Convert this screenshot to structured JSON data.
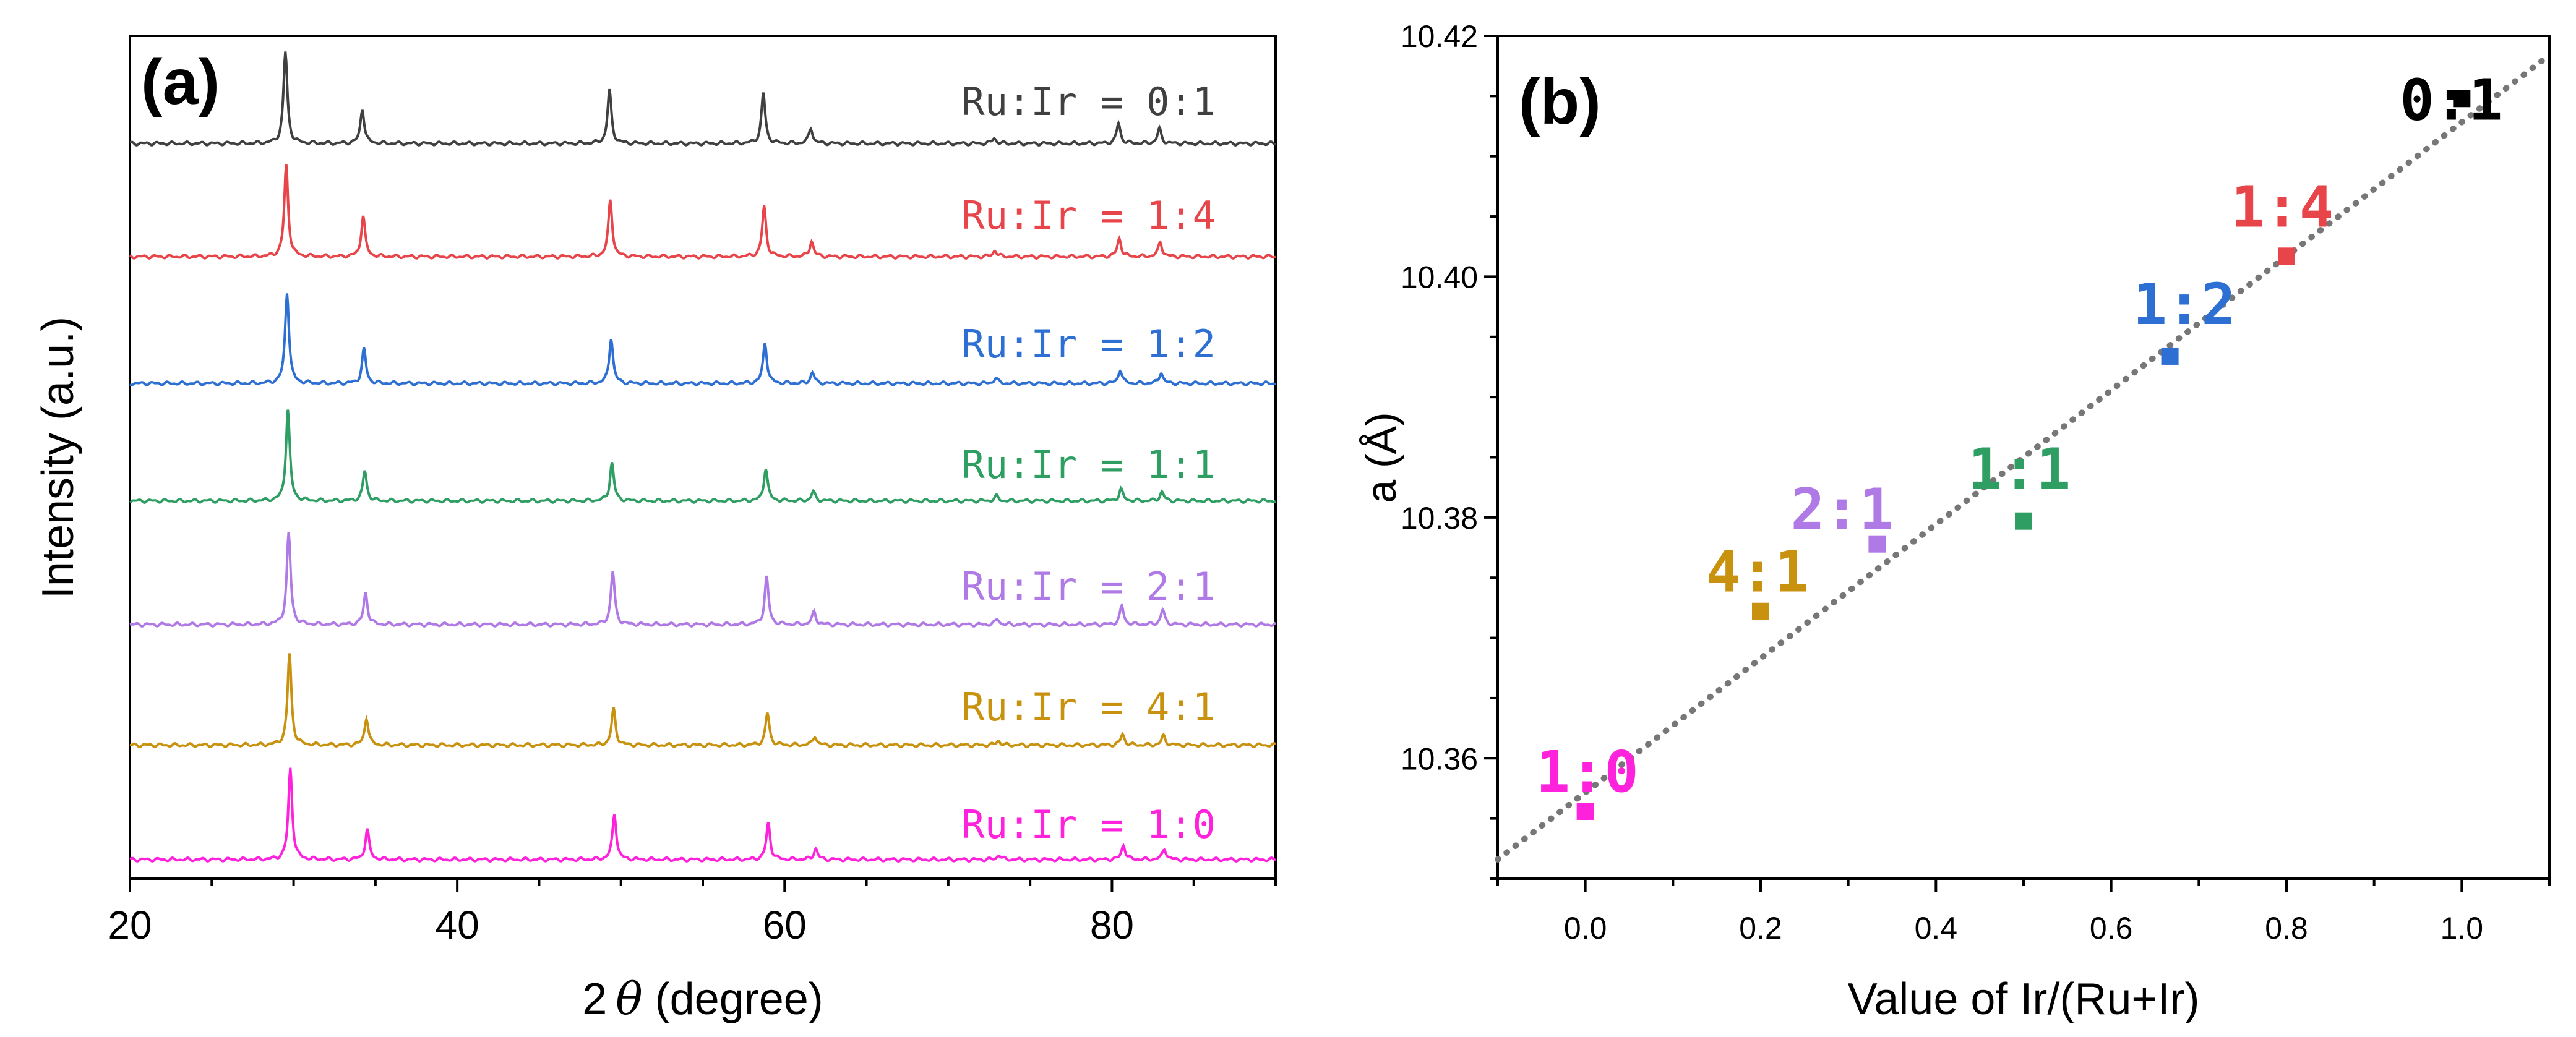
{
  "chart_data": [
    {
      "panel_label": "(a)",
      "type": "line",
      "title": "",
      "xlabel_prefix": "2",
      "xlabel_symbol": "θ",
      "xlabel_suffix": " (degree)",
      "ylabel": "Intensity (a.u.)",
      "xlim": [
        20,
        90
      ],
      "xticks": [
        20,
        40,
        60,
        80
      ],
      "x_minor_step": 5,
      "yticks": [],
      "peaks_2theta": [
        29.5,
        34.2,
        49.3,
        58.7,
        61.6,
        72.8,
        80.4,
        82.9
      ],
      "series": [
        {
          "name": "Ru:Ir = 0:1",
          "color": "#404040",
          "peak_shift": 0.0,
          "peak_heights": [
            1.0,
            0.38,
            0.58,
            0.55,
            0.17,
            0.06,
            0.22,
            0.16
          ]
        },
        {
          "name": "Ru:Ir = 1:4",
          "color": "#e8454a",
          "peak_shift": 0.05,
          "peak_heights": [
            1.0,
            0.45,
            0.62,
            0.55,
            0.17,
            0.07,
            0.2,
            0.16
          ]
        },
        {
          "name": "Ru:Ir = 1:2",
          "color": "#2e6fd3",
          "peak_shift": 0.1,
          "peak_heights": [
            1.0,
            0.38,
            0.5,
            0.45,
            0.12,
            0.06,
            0.15,
            0.12
          ]
        },
        {
          "name": "Ru:Ir = 1:1",
          "color": "#2e9e63",
          "peak_shift": 0.15,
          "peak_heights": [
            1.0,
            0.33,
            0.42,
            0.36,
            0.1,
            0.05,
            0.13,
            0.1
          ]
        },
        {
          "name": "Ru:Ir = 2:1",
          "color": "#b07ae6",
          "peak_shift": 0.2,
          "peak_heights": [
            1.0,
            0.35,
            0.58,
            0.52,
            0.14,
            0.06,
            0.2,
            0.16
          ]
        },
        {
          "name": "Ru:Ir = 4:1",
          "color": "#c8920f",
          "peak_shift": 0.25,
          "peak_heights": [
            1.0,
            0.3,
            0.4,
            0.35,
            0.1,
            0.05,
            0.12,
            0.1
          ]
        },
        {
          "name": "Ru:Ir = 1:0",
          "color": "#ff22dd",
          "peak_shift": 0.3,
          "peak_heights": [
            1.0,
            0.33,
            0.5,
            0.4,
            0.12,
            0.05,
            0.16,
            0.12
          ]
        }
      ]
    },
    {
      "panel_label": "(b)",
      "type": "scatter",
      "title": "",
      "xlabel": "Value of Ir/(Ru+Ir)",
      "ylabel": "a (Å)",
      "xlim": [
        -0.1,
        1.1
      ],
      "ylim": [
        10.35,
        10.42
      ],
      "xticks": [
        "0.0",
        "0.2",
        "0.4",
        "0.6",
        "0.8",
        "1.0"
      ],
      "x_minor_step": 0.1,
      "yticks": [
        "10.36",
        "10.38",
        "10.40",
        "10.42"
      ],
      "y_minor_step": 0.005,
      "points": [
        {
          "label": "1:0",
          "x": 0.0,
          "y": 10.3556,
          "color": "#ff22dd"
        },
        {
          "label": "4:1",
          "x": 0.2,
          "y": 10.3722,
          "color": "#c8920f"
        },
        {
          "label": "2:1",
          "x": 0.333,
          "y": 10.3778,
          "color": "#b07ae6"
        },
        {
          "label": "1:1",
          "x": 0.5,
          "y": 10.3797,
          "color": "#2e9e63"
        },
        {
          "label": "1:2",
          "x": 0.667,
          "y": 10.3934,
          "color": "#2e6fd3"
        },
        {
          "label": "1:4",
          "x": 0.8,
          "y": 10.4017,
          "color": "#e8454a"
        },
        {
          "label": "0:1",
          "x": 1.0,
          "y": 10.4148,
          "color": "#000000"
        }
      ],
      "fit_line": {
        "x0": -0.1,
        "y0": 10.3516,
        "x1": 1.1,
        "y1": 10.4184,
        "color": "#777777",
        "style": "dotted"
      }
    }
  ]
}
